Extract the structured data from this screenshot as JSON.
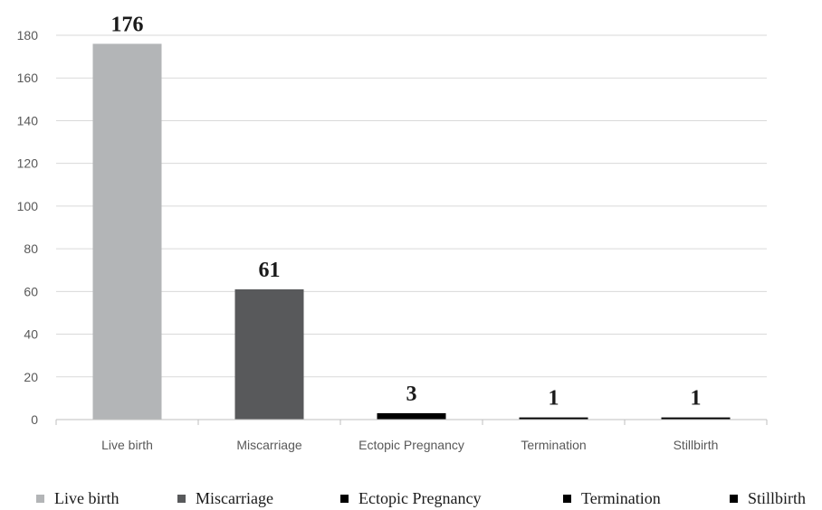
{
  "chart_data": {
    "type": "bar",
    "categories": [
      "Live birth",
      "Miscarriage",
      "Ectopic Pregnancy",
      "Termination",
      "Stillbirth"
    ],
    "values": [
      176,
      61,
      3,
      1,
      1
    ],
    "data_labels": [
      "176",
      "61",
      "3",
      "1",
      "1"
    ],
    "y_ticks": [
      0,
      20,
      40,
      60,
      80,
      100,
      120,
      140,
      160,
      180
    ],
    "ylim": [
      0,
      180
    ],
    "grid": true,
    "legend_position": "bottom",
    "colors": [
      "#b3b5b7",
      "#58595b",
      "#000000",
      "#000000",
      "#000000"
    ],
    "legend": [
      {
        "label": "Live birth",
        "color": "#b3b5b7"
      },
      {
        "label": "Miscarriage",
        "color": "#58595b"
      },
      {
        "label": "Ectopic Pregnancy",
        "color": "#000000"
      },
      {
        "label": "Termination",
        "color": "#000000"
      },
      {
        "label": "Stillbirth",
        "color": "#000000"
      }
    ]
  }
}
